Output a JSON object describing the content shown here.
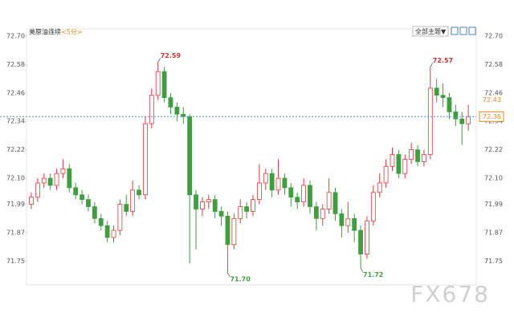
{
  "chart_data": {
    "type": "candlestick",
    "header": {
      "symbol": "美原油连续",
      "period": "<5分>",
      "theme_button": "全部主题▼"
    },
    "watermark": "FX678",
    "ylim": [
      71.65,
      72.73
    ],
    "yticks": [
      {
        "value": 72.7,
        "label": "72.70"
      },
      72.58,
      72.46,
      72.34,
      72.22,
      {
        "value": 72.1,
        "label": "72.10"
      },
      71.99,
      71.87,
      71.75
    ],
    "up_color": "#e03a3a",
    "down_color": "#3f9f3f",
    "last_price": 72.36,
    "ma_price": 72.43,
    "annotations": [
      "72.59",
      "72.57",
      "71.70",
      "71.72"
    ],
    "series": [
      {
        "open": [
          71.99,
          72.02,
          72.08,
          72.1,
          72.07,
          72.12,
          72.14,
          72.06,
          72.03,
          72.01,
          71.98,
          71.93,
          71.9,
          71.85,
          71.88,
          71.99,
          71.96,
          72.05,
          72.03,
          72.33,
          72.45,
          72.55,
          72.44,
          72.4,
          72.37,
          72.36,
          72.03,
          71.97,
          72.0,
          72.01,
          71.96,
          71.94,
          71.82,
          71.93,
          71.98,
          71.96,
          72.01,
          72.08,
          72.12,
          72.05,
          72.1,
          72.06,
          72.02,
          72.0,
          72.07,
          71.98,
          71.93,
          71.97,
          72.04,
          71.95,
          71.9,
          71.93,
          71.88,
          71.78,
          71.92,
          72.04,
          72.08,
          72.15,
          72.2,
          72.12,
          72.18,
          72.22,
          72.17,
          72.2,
          72.48,
          72.45,
          72.44,
          72.38,
          72.35,
          72.33
        ],
        "high": [
          72.04,
          72.1,
          72.12,
          72.12,
          72.14,
          72.18,
          72.16,
          72.08,
          72.05,
          72.03,
          72.0,
          71.95,
          71.92,
          71.9,
          72.01,
          72.03,
          72.09,
          72.07,
          72.36,
          72.48,
          72.59,
          72.57,
          72.46,
          72.42,
          72.4,
          72.37,
          72.05,
          72.02,
          72.03,
          72.03,
          71.98,
          71.96,
          71.95,
          72.01,
          72.0,
          72.03,
          72.16,
          72.14,
          72.14,
          72.18,
          72.12,
          72.08,
          72.04,
          72.1,
          72.09,
          72.0,
          71.99,
          72.1,
          72.06,
          71.97,
          72.0,
          71.95,
          71.9,
          71.94,
          72.07,
          72.12,
          72.18,
          72.23,
          72.22,
          72.2,
          72.25,
          72.24,
          72.22,
          72.57,
          72.52,
          72.5,
          72.46,
          72.41,
          72.38,
          72.41
        ],
        "low": [
          71.97,
          72.0,
          72.06,
          72.05,
          72.05,
          72.1,
          72.04,
          72.01,
          71.99,
          71.96,
          71.91,
          71.88,
          71.83,
          71.83,
          71.86,
          71.94,
          71.94,
          72.01,
          72.01,
          72.31,
          72.43,
          72.42,
          72.37,
          72.34,
          72.33,
          71.74,
          71.8,
          71.94,
          71.97,
          71.93,
          71.9,
          71.7,
          71.8,
          71.91,
          71.93,
          71.94,
          71.99,
          72.05,
          72.02,
          72.03,
          72.03,
          71.98,
          71.97,
          71.98,
          71.95,
          71.88,
          71.9,
          71.95,
          71.92,
          71.85,
          71.87,
          71.83,
          71.72,
          71.76,
          71.9,
          72.02,
          72.06,
          72.13,
          72.1,
          72.1,
          72.16,
          72.15,
          72.15,
          72.18,
          72.42,
          72.4,
          72.35,
          72.32,
          72.24,
          72.3
        ],
        "close": [
          72.02,
          72.08,
          72.1,
          72.07,
          72.12,
          72.14,
          72.06,
          72.03,
          72.01,
          71.98,
          71.93,
          71.9,
          71.85,
          71.88,
          71.99,
          71.96,
          72.05,
          72.03,
          72.33,
          72.45,
          72.55,
          72.44,
          72.4,
          72.37,
          72.36,
          72.03,
          71.97,
          72.0,
          72.01,
          71.96,
          71.94,
          71.82,
          71.93,
          71.98,
          71.96,
          72.01,
          72.08,
          72.12,
          72.05,
          72.1,
          72.06,
          72.02,
          72.0,
          72.07,
          71.98,
          71.93,
          71.97,
          72.04,
          71.95,
          71.9,
          71.93,
          71.88,
          71.78,
          71.92,
          72.04,
          72.08,
          72.15,
          72.2,
          72.12,
          72.18,
          72.22,
          72.17,
          72.2,
          72.48,
          72.45,
          72.44,
          72.38,
          72.35,
          72.33,
          72.36
        ]
      }
    ]
  }
}
